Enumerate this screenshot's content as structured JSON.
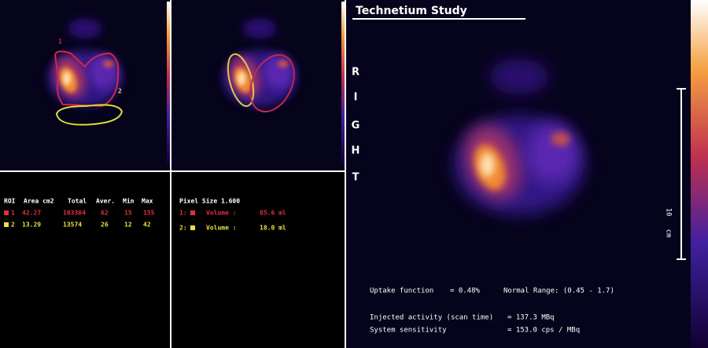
{
  "left_panel": {
    "roi_labels": [
      "1",
      "2"
    ]
  },
  "roi_table": {
    "header": [
      "ROI",
      "Area cm2",
      "Total",
      "Aver.",
      "Min",
      "Max"
    ],
    "rows": [
      [
        "1",
        "42.27",
        "103304",
        "62",
        "15",
        "155"
      ],
      [
        "2",
        "13.29",
        "13574",
        "26",
        "12",
        "42"
      ]
    ]
  },
  "volume_table": {
    "pixel_size": "Pixel Size 1.600",
    "rows": [
      {
        "index": "1:",
        "label": "Volume :",
        "value": "85.6 ml"
      },
      {
        "index": "2:",
        "label": "Volume :",
        "value": "18.0 ml"
      }
    ]
  },
  "orientation": [
    "R",
    "I",
    "G",
    "H",
    "T"
  ],
  "main_view": {
    "title": "Technetium Study",
    "scale": [
      "10",
      "cm"
    ],
    "uptake": {
      "label": "Uptake function",
      "value": "= 0.48%",
      "normal_range": "Normal Range: (0.45 - 1.7)"
    },
    "injected": {
      "label": "Injected activity (scan time)",
      "value": "= 137.3 MBq"
    },
    "sensitivity": {
      "label": "System sensitivity",
      "value": "= 153.0 cps / MBq"
    }
  }
}
